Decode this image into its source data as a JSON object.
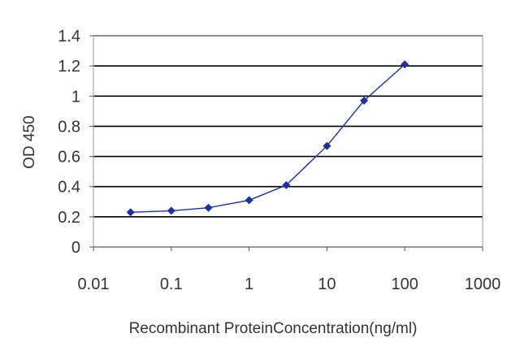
{
  "chart_data": {
    "type": "line",
    "title": "",
    "xlabel": "Recombinant ProteinConcentration(ng/ml)",
    "ylabel": "OD 450",
    "x_scale": "log",
    "xlim": [
      0.01,
      1000
    ],
    "ylim": [
      0,
      1.4
    ],
    "grid": "horizontal",
    "legend": "none",
    "x_ticks": [
      "0.01",
      "0.1",
      "1",
      "10",
      "100",
      "1000"
    ],
    "y_ticks": [
      "0",
      "0.2",
      "0.4",
      "0.6",
      "0.8",
      "1",
      "1.2",
      "1.4"
    ],
    "series": [
      {
        "x": [
          0.03,
          0.1,
          0.3,
          1,
          3,
          10,
          30,
          100
        ],
        "values": [
          0.23,
          0.24,
          0.26,
          0.31,
          0.41,
          0.67,
          0.97,
          1.21
        ]
      }
    ],
    "colors": {
      "series": "#1f2f9a",
      "grid": "#000000",
      "plot_border": "#999999"
    }
  }
}
